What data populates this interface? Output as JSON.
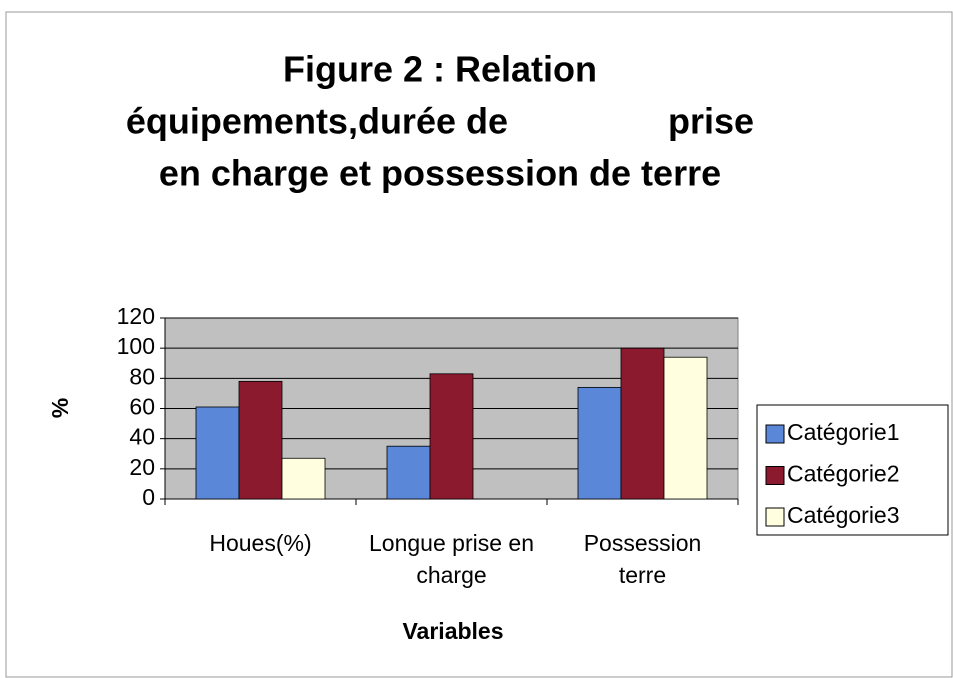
{
  "chart_data": {
    "type": "bar",
    "title": [
      "Figure 2 : Relation",
      "équipements,durée de                prise",
      "en charge et possession de terre"
    ],
    "x_label": "Variables",
    "y_label": "%",
    "categories": [
      "Houes(%)",
      "Longue prise en charge",
      "Possession terre"
    ],
    "series": [
      {
        "name": "Catégorie1",
        "color": "#5b87d8",
        "values": [
          61,
          35,
          74
        ]
      },
      {
        "name": "Catégorie2",
        "color": "#8b1a2e",
        "values": [
          78,
          83,
          100
        ]
      },
      {
        "name": "Catégorie3",
        "color": "#ffffe0",
        "values": [
          27,
          null,
          94
        ]
      }
    ],
    "ylim": [
      0,
      120
    ],
    "yticks": [
      0,
      20,
      40,
      60,
      80,
      100,
      120
    ],
    "grid": true,
    "legend": "right"
  }
}
